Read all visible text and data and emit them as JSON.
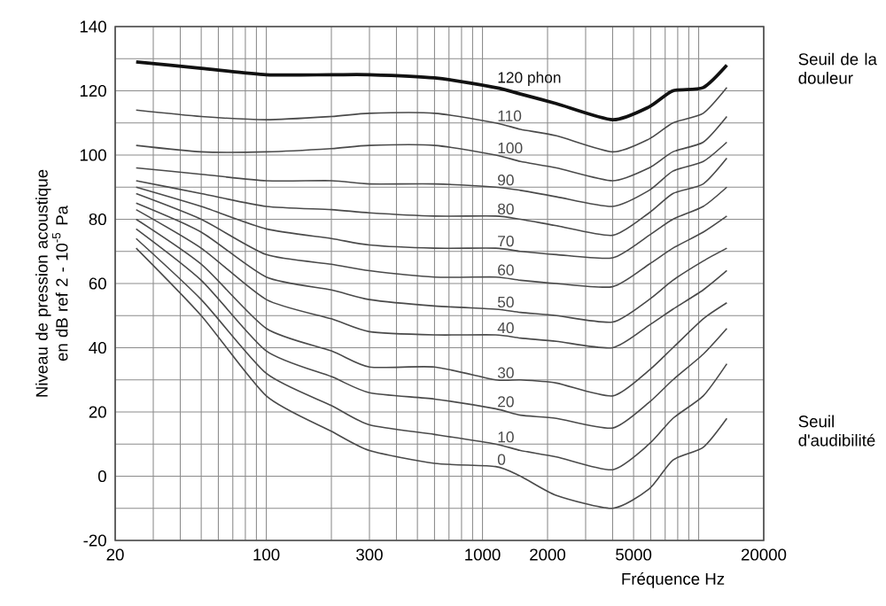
{
  "chart_data": {
    "type": "line",
    "xlabel": "Fréquence Hz",
    "ylabel": "Niveau de pression acoustique en dB ref 2 - 10$^{-5}$ Pa",
    "annotations": [
      "Seuil de la douleur",
      "Seuil d'audibilité"
    ],
    "log": "x",
    "grid": true,
    "marker": "none",
    "line_style": "solid",
    "xlim": [
      20,
      20000
    ],
    "ylim": [
      -20,
      140
    ],
    "xticks": [
      20,
      {
        "value": 30,
        "label": null
      },
      {
        "value": 40,
        "label": null
      },
      {
        "value": 50,
        "label": null
      },
      {
        "value": 60,
        "label": null
      },
      {
        "value": 70,
        "label": null
      },
      {
        "value": 80,
        "label": null
      },
      {
        "value": 90,
        "label": null
      },
      100,
      {
        "value": 200,
        "label": null
      },
      300,
      {
        "value": 400,
        "label": null
      },
      {
        "value": 500,
        "label": null
      },
      {
        "value": 600,
        "label": null
      },
      {
        "value": 700,
        "label": null
      },
      {
        "value": 800,
        "label": null
      },
      {
        "value": 900,
        "label": null
      },
      1000,
      2000,
      {
        "value": 3000,
        "label": null
      },
      {
        "value": 4000,
        "label": null
      },
      5000,
      {
        "value": 6000,
        "label": null
      },
      {
        "value": 7000,
        "label": null
      },
      {
        "value": 8000,
        "label": null
      },
      {
        "value": 9000,
        "label": null
      },
      {
        "value": 10000,
        "label": null
      },
      20000
    ],
    "yticks": [
      -20,
      {
        "value": -10,
        "label": null
      },
      0,
      {
        "value": 10,
        "label": null
      },
      20,
      {
        "value": 30,
        "label": null
      },
      40,
      {
        "value": 50,
        "label": null
      },
      60,
      {
        "value": 70,
        "label": null
      },
      80,
      {
        "value": 90,
        "label": null
      },
      100,
      {
        "value": 110,
        "label": null
      },
      120,
      {
        "value": 130,
        "label": null
      },
      140
    ],
    "x": [
      25,
      50,
      100,
      200,
      300,
      600,
      1150,
      1500,
      2200,
      4000,
      5900,
      7600,
      10500,
      13500
    ],
    "series": [
      {
        "name": "120 phon",
        "color": "#111111",
        "values": [
          129,
          127,
          125,
          125,
          125,
          124,
          121,
          119,
          116,
          111,
          115,
          120,
          121,
          128
        ]
      },
      {
        "name": "110",
        "color": "#4a4a4a",
        "values": [
          114,
          112,
          111,
          112,
          113,
          113,
          110,
          108,
          106,
          101,
          105,
          110,
          113,
          121
        ]
      },
      {
        "name": "100",
        "color": "#4a4a4a",
        "values": [
          103,
          101,
          101,
          102,
          103,
          103,
          100,
          98,
          96,
          92,
          96,
          101,
          104,
          112
        ]
      },
      {
        "name": "90",
        "color": "#4a4a4a",
        "values": [
          96,
          94,
          92,
          92,
          91,
          91,
          90,
          89,
          87,
          84,
          89,
          95,
          98,
          104
        ]
      },
      {
        "name": "80",
        "color": "#4a4a4a",
        "values": [
          92,
          88,
          84,
          83,
          82,
          81,
          81,
          80,
          78,
          75,
          82,
          88,
          91,
          99
        ]
      },
      {
        "name": "70",
        "color": "#4a4a4a",
        "values": [
          90,
          84,
          77,
          74,
          72,
          71,
          71,
          70,
          69,
          68,
          75,
          80,
          84,
          90
        ]
      },
      {
        "name": "60",
        "color": "#4a4a4a",
        "values": [
          88,
          80,
          69,
          66,
          64,
          62,
          62,
          61,
          60,
          59,
          66,
          71,
          76,
          81
        ]
      },
      {
        "name": "50",
        "color": "#4a4a4a",
        "values": [
          85,
          76,
          62,
          58,
          55,
          53,
          52,
          51,
          50,
          48,
          55,
          61,
          67,
          71
        ]
      },
      {
        "name": "40",
        "color": "#4a4a4a",
        "values": [
          83,
          71,
          55,
          49,
          45,
          44,
          44,
          43,
          42,
          40,
          47,
          52,
          58,
          64
        ]
      },
      {
        "name": "30",
        "color": "#4a4a4a",
        "values": [
          80,
          66,
          46,
          39,
          34,
          34,
          30,
          30,
          29,
          25,
          33,
          40,
          49,
          54
        ]
      },
      {
        "name": "20",
        "color": "#4a4a4a",
        "values": [
          77,
          61,
          39,
          31,
          26,
          24,
          21,
          19,
          18,
          15,
          23,
          30,
          38,
          46
        ]
      },
      {
        "name": "10",
        "color": "#4a4a4a",
        "values": [
          74,
          55,
          32,
          22,
          16,
          13,
          10,
          8,
          6,
          2,
          10,
          18,
          25,
          35
        ]
      },
      {
        "name": "0",
        "color": "#4a4a4a",
        "values": [
          71,
          50,
          25,
          14,
          8,
          4,
          3,
          0,
          -6,
          -10,
          -4,
          5,
          9,
          18
        ]
      }
    ]
  }
}
